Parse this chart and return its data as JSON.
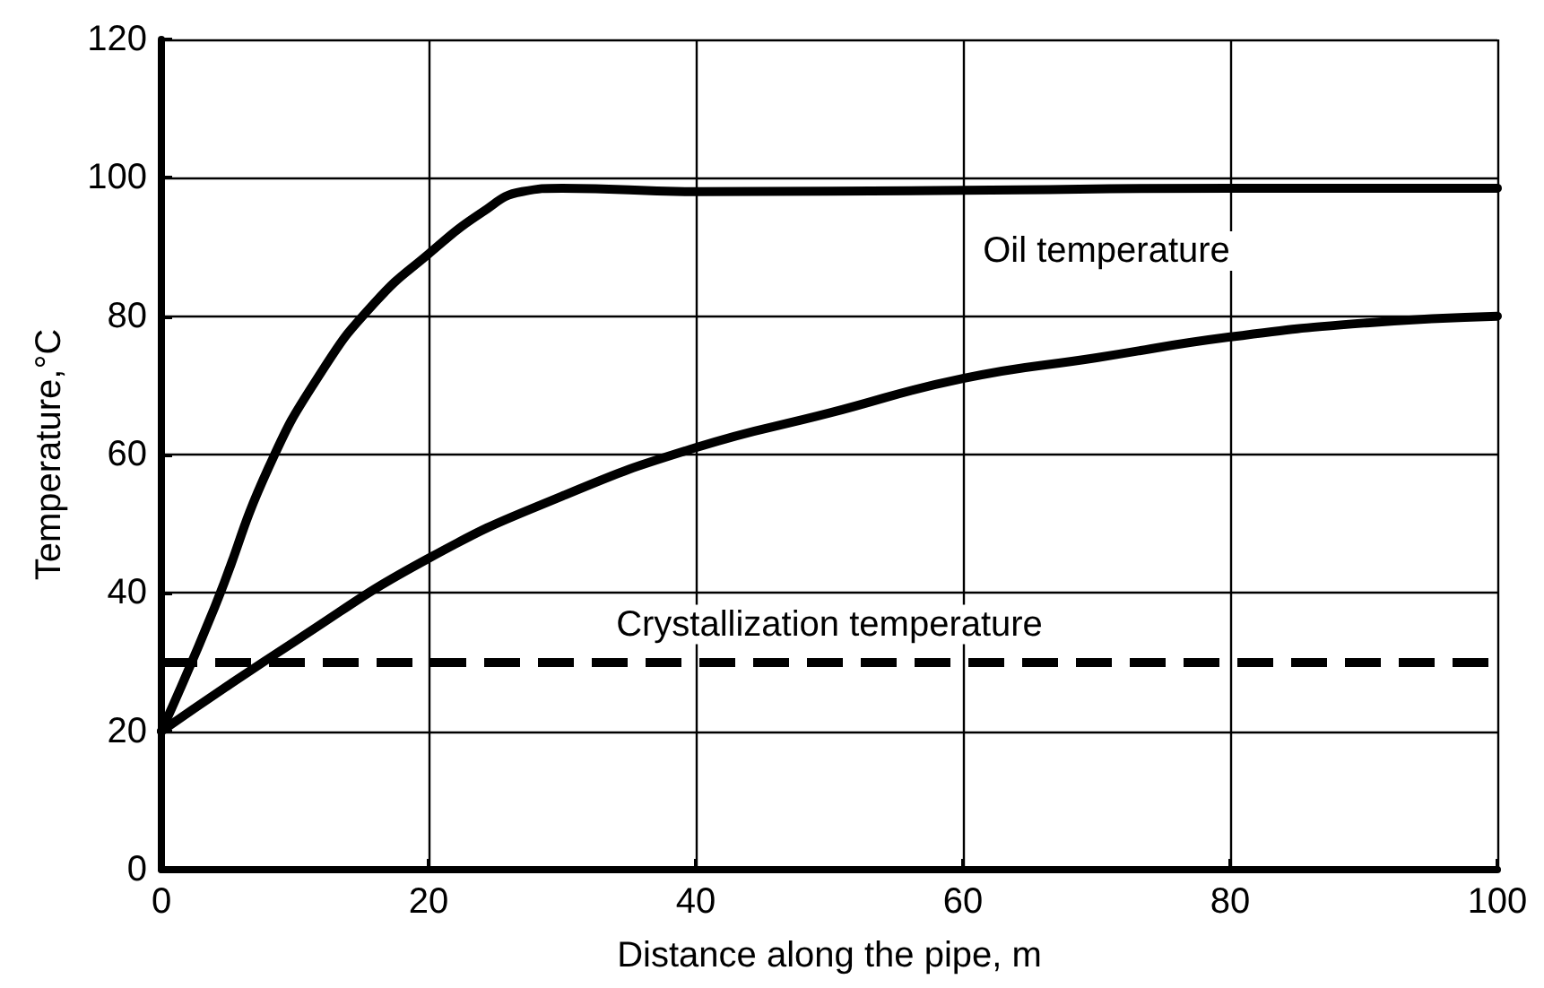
{
  "chart_data": {
    "type": "line",
    "xlabel": "Distance along the pipe, m",
    "ylabel": "Temperature,°C",
    "xlim": [
      0,
      100
    ],
    "xticks": [
      0,
      20,
      40,
      60,
      80,
      100
    ],
    "ylim": [
      0,
      120
    ],
    "yticks": [
      0,
      20,
      40,
      60,
      80,
      100,
      120
    ],
    "grid": true,
    "marker": "none",
    "line_style": "solid",
    "series": [
      {
        "color": "#000000",
        "x": [
          0,
          4,
          8,
          12,
          16,
          20,
          24,
          27,
          30,
          40,
          60,
          80,
          100
        ],
        "values": [
          20,
          38,
          58,
          72,
          82,
          89,
          95,
          98,
          98.5,
          98,
          98.2,
          98.5,
          98.5
        ]
      },
      {
        "color": "#000000",
        "x": [
          0,
          10,
          20,
          30,
          40,
          50,
          60,
          70,
          80,
          90,
          100
        ],
        "values": [
          20,
          33,
          45,
          54,
          61,
          66,
          71,
          74,
          77,
          79,
          80
        ]
      }
    ],
    "ref_lines": [
      {
        "axis": "y",
        "value": 30,
        "label": "Crystallization temperature",
        "color": "#000000",
        "line_style": "dashed"
      }
    ],
    "annotations": [
      "Oil temperature"
    ]
  }
}
